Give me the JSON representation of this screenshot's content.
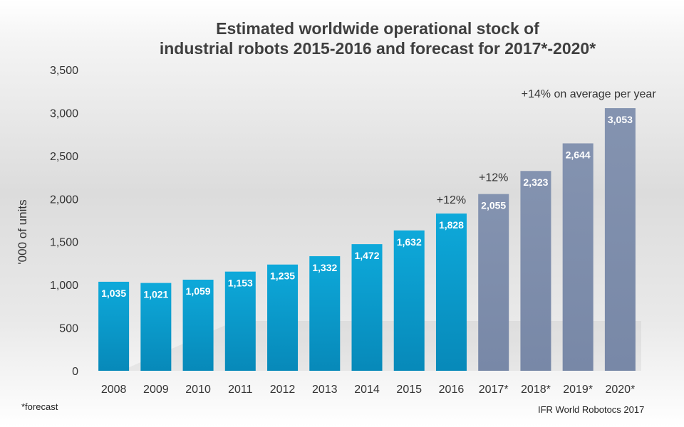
{
  "chart_data": {
    "type": "bar",
    "title_line1": "Estimated worldwide operational stock of",
    "title_line2": "industrial robots 2015-2016 and forecast for 2017*-2020*",
    "xlabel": "",
    "ylabel": "'000 of units",
    "ylim": [
      0,
      3500
    ],
    "yticks": [
      0,
      500,
      1000,
      1500,
      2000,
      2500,
      3000,
      3500
    ],
    "ytick_labels": [
      "0",
      "500",
      "1,000",
      "1,500",
      "2,000",
      "2,500",
      "3,000",
      "3,500"
    ],
    "categories": [
      "2008",
      "2009",
      "2010",
      "2011",
      "2012",
      "2013",
      "2014",
      "2015",
      "2016",
      "2017*",
      "2018*",
      "2019*",
      "2020*"
    ],
    "values": [
      1035,
      1021,
      1059,
      1153,
      1235,
      1332,
      1472,
      1632,
      1828,
      2055,
      2323,
      2644,
      3053
    ],
    "value_labels": [
      "1,035",
      "1,021",
      "1,059",
      "1,153",
      "1,235",
      "1,332",
      "1,472",
      "1,632",
      "1,828",
      "2,055",
      "2,323",
      "2,644",
      "3,053"
    ],
    "forecast_from_index": 9,
    "colors": {
      "actual": "#0a9fd0",
      "forecast": "#8493b0",
      "text": "#333333"
    },
    "annotations": [
      {
        "text": "+12%",
        "category": "2016"
      },
      {
        "text": "+12%",
        "category": "2017*"
      },
      {
        "text": "+14% on average per year",
        "category": "2019*"
      }
    ]
  },
  "footnote": "*forecast",
  "source": "IFR World Robotocs 2017"
}
